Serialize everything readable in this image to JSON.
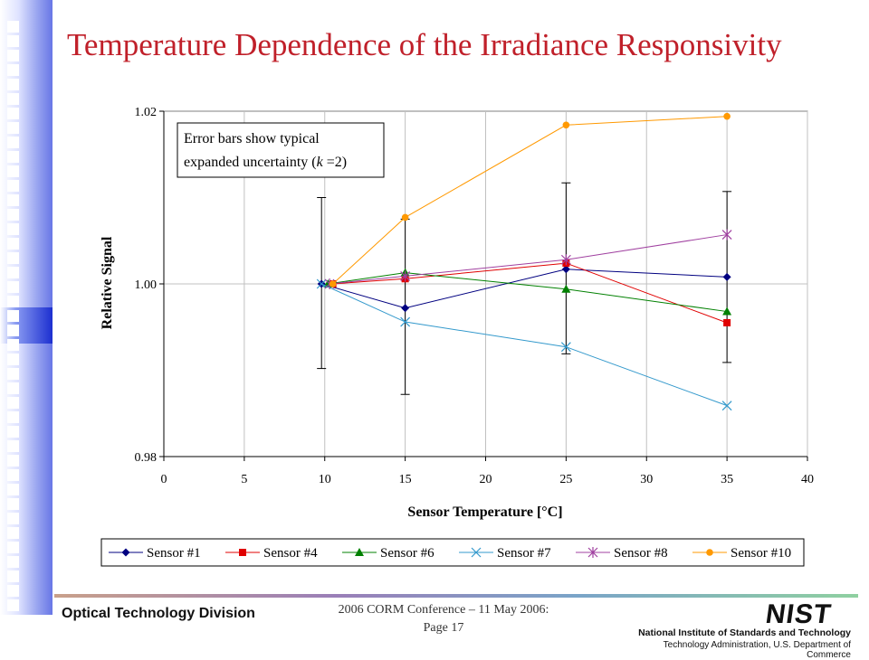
{
  "slide": {
    "title": "Temperature Dependence of the Irradiance Responsivity",
    "footer_left": "Optical Technology Division",
    "footer_center_line1": "2006 CORM Conference – 11 May 2006:",
    "footer_center_line2": "Page 17",
    "logo_text": "NIST",
    "org_line1": "National Institute of Standards and Technology",
    "org_line2": "Technology Administration, U.S. Department of Commerce"
  },
  "chart_data": {
    "type": "line",
    "xlabel": "Sensor Temperature [°C]",
    "ylabel": "Relative Signal",
    "xlim": [
      0,
      40
    ],
    "ylim": [
      0.98,
      1.02
    ],
    "x_ticks": [
      0,
      5,
      10,
      15,
      20,
      25,
      30,
      35,
      40
    ],
    "y_ticks": [
      0.98,
      1.0,
      1.02
    ],
    "y_tick_labels": [
      "0.98",
      "1.00",
      "1.02"
    ],
    "grid": "vertical",
    "legend_position": "bottom",
    "annotation": {
      "line1": "Error bars show typical",
      "line2_prefix": "expanded uncertainty (",
      "line2_italic": "k",
      "line2_suffix": " =2)"
    },
    "error_bars": [
      {
        "x": 9.8,
        "low": 0.9902,
        "high": 1.01
      },
      {
        "x": 15.0,
        "low": 0.9872,
        "high": 1.0075
      },
      {
        "x": 25.0,
        "low": 0.9919,
        "high": 1.0117
      },
      {
        "x": 35.0,
        "low": 0.9909,
        "high": 1.0107
      }
    ],
    "series": [
      {
        "name": "Sensor #1",
        "color": "#000080",
        "marker": "diamond",
        "x": [
          9.8,
          15.0,
          25.0,
          35.0
        ],
        "y": [
          1.0,
          0.9972,
          1.0017,
          1.0008
        ]
      },
      {
        "name": "Sensor #4",
        "color": "#e00000",
        "marker": "square",
        "x": [
          10.5,
          15.0,
          25.0,
          35.0
        ],
        "y": [
          1.0,
          1.0006,
          1.0024,
          0.9955
        ]
      },
      {
        "name": "Sensor #6",
        "color": "#008000",
        "marker": "triangle",
        "x": [
          10.2,
          15.0,
          25.0,
          35.0
        ],
        "y": [
          1.0,
          1.0013,
          0.9994,
          0.9968
        ]
      },
      {
        "name": "Sensor #7",
        "color": "#3399cc",
        "marker": "x",
        "x": [
          9.8,
          15.0,
          25.0,
          35.0
        ],
        "y": [
          1.0,
          0.9956,
          0.9927,
          0.9859
        ]
      },
      {
        "name": "Sensor #8",
        "color": "#a040a0",
        "marker": "star",
        "x": [
          10.3,
          15.0,
          25.0,
          35.0
        ],
        "y": [
          1.0,
          1.0009,
          1.0028,
          1.0057
        ]
      },
      {
        "name": "Sensor #10",
        "color": "#ff9900",
        "marker": "circle",
        "x": [
          10.5,
          15.0,
          25.0,
          35.0
        ],
        "y": [
          1.0,
          1.0077,
          1.0184,
          1.0194
        ]
      }
    ]
  }
}
